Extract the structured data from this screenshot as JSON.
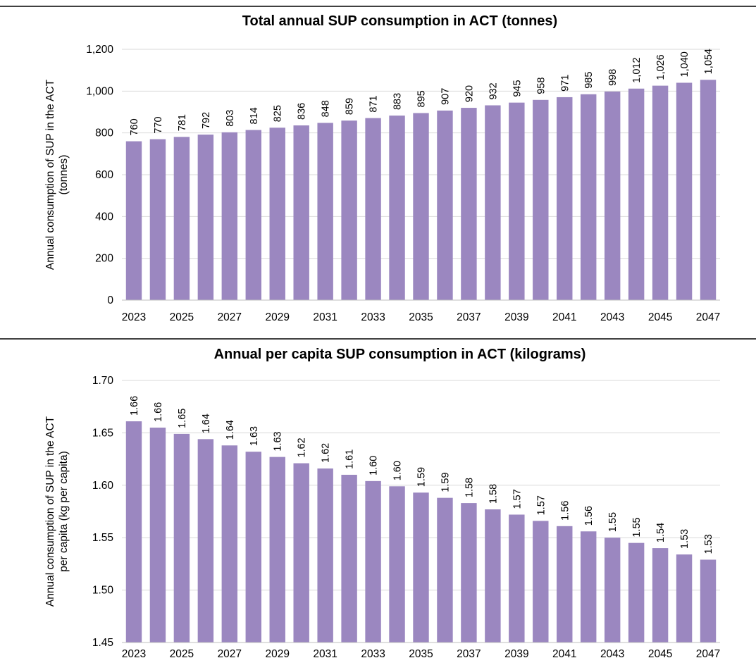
{
  "chart_data": [
    {
      "type": "bar",
      "title": "Total annual SUP consumption in ACT (tonnes)",
      "ylabel": [
        "Annual consumption of SUP in the ACT",
        "(tonnes)"
      ],
      "xlabel": "",
      "ylim": [
        0,
        1200
      ],
      "yticks": [
        0,
        200,
        400,
        600,
        800,
        1000,
        1200
      ],
      "ytick_labels": [
        "0",
        "200",
        "400",
        "600",
        "800",
        "1,000",
        "1,200"
      ],
      "grid": true,
      "color": "#9b87c0",
      "categories": [
        2023,
        2024,
        2025,
        2026,
        2027,
        2028,
        2029,
        2030,
        2031,
        2032,
        2033,
        2034,
        2035,
        2036,
        2037,
        2038,
        2039,
        2040,
        2041,
        2042,
        2043,
        2044,
        2045,
        2046,
        2047
      ],
      "xtick_labels": [
        "2023",
        "",
        "2025",
        "",
        "2027",
        "",
        "2029",
        "",
        "2031",
        "",
        "2033",
        "",
        "2035",
        "",
        "2037",
        "",
        "2039",
        "",
        "2041",
        "",
        "2043",
        "",
        "2045",
        "",
        "2047"
      ],
      "values": [
        760,
        770,
        781,
        792,
        803,
        814,
        825,
        836,
        848,
        859,
        871,
        883,
        895,
        907,
        920,
        932,
        945,
        958,
        971,
        985,
        998,
        1012,
        1026,
        1040,
        1054
      ],
      "data_labels": [
        "760",
        "770",
        "781",
        "792",
        "803",
        "814",
        "825",
        "836",
        "848",
        "859",
        "871",
        "883",
        "895",
        "907",
        "920",
        "932",
        "945",
        "958",
        "971",
        "985",
        "998",
        "1,012",
        "1,026",
        "1,040",
        "1,054"
      ]
    },
    {
      "type": "bar",
      "title": "Annual per capita SUP consumption in ACT (kilograms)",
      "ylabel": [
        "Annual consumption of SUP in the ACT",
        "per capita (kg per capita)"
      ],
      "xlabel": "",
      "ylim": [
        1.45,
        1.7
      ],
      "yticks": [
        1.45,
        1.5,
        1.55,
        1.6,
        1.65,
        1.7
      ],
      "ytick_labels": [
        "1.45",
        "1.50",
        "1.55",
        "1.60",
        "1.65",
        "1.70"
      ],
      "grid": true,
      "color": "#9b87c0",
      "categories": [
        2023,
        2024,
        2025,
        2026,
        2027,
        2028,
        2029,
        2030,
        2031,
        2032,
        2033,
        2034,
        2035,
        2036,
        2037,
        2038,
        2039,
        2040,
        2041,
        2042,
        2043,
        2044,
        2045,
        2046,
        2047
      ],
      "xtick_labels": [
        "2023",
        "",
        "2025",
        "",
        "2027",
        "",
        "2029",
        "",
        "2031",
        "",
        "2033",
        "",
        "2035",
        "",
        "2037",
        "",
        "2039",
        "",
        "2041",
        "",
        "2043",
        "",
        "2045",
        "",
        "2047"
      ],
      "values": [
        1.661,
        1.655,
        1.649,
        1.644,
        1.638,
        1.632,
        1.627,
        1.621,
        1.616,
        1.61,
        1.604,
        1.599,
        1.593,
        1.588,
        1.583,
        1.577,
        1.572,
        1.566,
        1.561,
        1.556,
        1.55,
        1.545,
        1.54,
        1.534,
        1.529
      ],
      "data_labels": [
        "1.66",
        "1.66",
        "1.65",
        "1.64",
        "1.64",
        "1.63",
        "1.63",
        "1.62",
        "1.62",
        "1.61",
        "1.60",
        "1.60",
        "1.59",
        "1.59",
        "1.58",
        "1.58",
        "1.57",
        "1.57",
        "1.56",
        "1.56",
        "1.55",
        "1.55",
        "1.54",
        "1.53",
        "1.53"
      ]
    }
  ]
}
